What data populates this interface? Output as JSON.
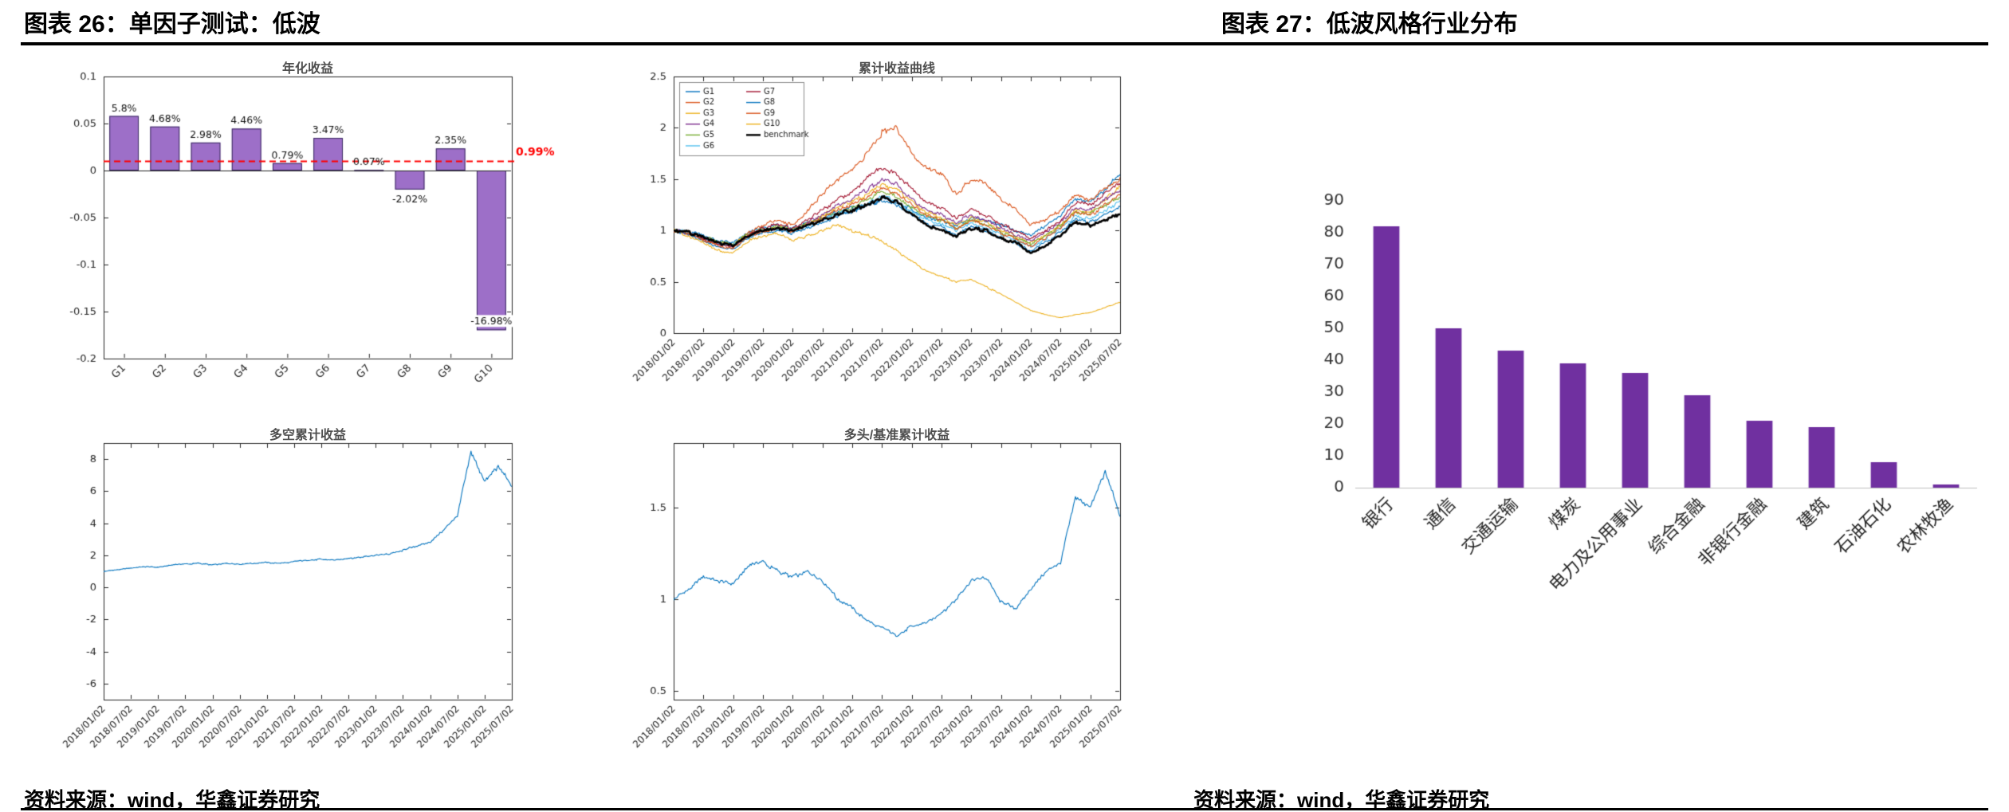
{
  "header": {
    "left_title": "图表 26：单因子测试：低波",
    "right_title": "图表 27：低波风格行业分布"
  },
  "footer": {
    "left_source": "资料来源：wind，华鑫证券研究",
    "right_source": "资料来源：wind，华鑫证券研究"
  },
  "colors": {
    "bar_fill": "#9D6FC8",
    "bar_edge": "#3A2A60",
    "industry_bar": "#7030A0",
    "line_blue": "#0072BD",
    "ref_red": "#FF0000",
    "axis": "#262626"
  },
  "chart_data": [
    {
      "id": "annualized-return",
      "type": "bar",
      "title": "年化收益",
      "categories": [
        "G1",
        "G2",
        "G3",
        "G4",
        "G5",
        "G6",
        "G7",
        "G8",
        "G9",
        "G10"
      ],
      "values": [
        0.058,
        0.0468,
        0.0298,
        0.0446,
        0.0079,
        0.0347,
        0.0007,
        -0.0202,
        0.0235,
        -0.1698
      ],
      "value_labels": [
        "5.8%",
        "4.68%",
        "2.98%",
        "4.46%",
        "0.79%",
        "3.47%",
        "0.07%",
        "-2.02%",
        "2.35%",
        "-16.98%"
      ],
      "ref_line": {
        "value": 0.0099,
        "label": "0.99%",
        "style": "dashed",
        "color": "#FF0000"
      },
      "ylim": [
        -0.2,
        0.1
      ],
      "yticks": [
        0.1,
        0.05,
        0,
        -0.05,
        -0.1,
        -0.15,
        -0.2
      ],
      "grid": false
    },
    {
      "id": "cumulative-return-curves",
      "type": "line",
      "title": "累计收益曲线",
      "ylim": [
        0,
        2.5
      ],
      "yticks": [
        0,
        0.5,
        1,
        1.5,
        2,
        2.5
      ],
      "noise": 0.022,
      "grid": false,
      "xticks": [
        "2018/01/02",
        "2018/07/02",
        "2019/01/02",
        "2019/07/02",
        "2020/01/02",
        "2020/07/02",
        "2021/01/02",
        "2021/07/02",
        "2022/01/02",
        "2022/07/02",
        "2023/01/02",
        "2023/07/02",
        "2024/01/02",
        "2024/07/02",
        "2025/01/02",
        "2025/07/02"
      ],
      "legend": {
        "position": "top-left",
        "columns": [
          [
            "G1",
            "G2",
            "G3",
            "G4",
            "G5",
            "G6"
          ],
          [
            "G7",
            "G8",
            "G9",
            "G10",
            "benchmark"
          ]
        ]
      },
      "series": [
        {
          "name": "G1",
          "color": "#0072BD",
          "values": [
            1.0,
            0.99,
            0.95,
            0.9,
            0.88,
            0.98,
            1.02,
            1.05,
            1.02,
            1.08,
            1.12,
            1.18,
            1.22,
            1.25,
            1.3,
            1.28,
            1.2,
            1.12,
            1.1,
            1.05,
            1.12,
            1.1,
            1.05,
            1.0,
            0.95,
            1.05,
            1.15,
            1.3,
            1.28,
            1.4,
            1.55
          ]
        },
        {
          "name": "G2",
          "color": "#D95319",
          "values": [
            1.0,
            0.97,
            0.92,
            0.87,
            0.85,
            0.97,
            1.05,
            1.1,
            1.05,
            1.2,
            1.35,
            1.5,
            1.6,
            1.75,
            1.95,
            2.0,
            1.75,
            1.6,
            1.55,
            1.35,
            1.5,
            1.45,
            1.3,
            1.2,
            1.05,
            1.1,
            1.2,
            1.35,
            1.3,
            1.4,
            1.5
          ]
        },
        {
          "name": "G3",
          "color": "#EDB120",
          "values": [
            1.0,
            0.98,
            0.93,
            0.88,
            0.86,
            0.96,
            1.0,
            1.04,
            1.0,
            1.08,
            1.15,
            1.22,
            1.28,
            1.35,
            1.45,
            1.4,
            1.28,
            1.18,
            1.12,
            1.05,
            1.12,
            1.08,
            1.0,
            0.95,
            0.88,
            0.95,
            1.05,
            1.2,
            1.18,
            1.3,
            1.42
          ]
        },
        {
          "name": "G4",
          "color": "#7E2F8E",
          "values": [
            1.0,
            0.97,
            0.92,
            0.86,
            0.84,
            0.95,
            1.0,
            1.03,
            1.0,
            1.07,
            1.15,
            1.25,
            1.3,
            1.4,
            1.5,
            1.45,
            1.3,
            1.2,
            1.15,
            1.08,
            1.15,
            1.1,
            1.02,
            0.96,
            0.9,
            0.98,
            1.08,
            1.22,
            1.2,
            1.3,
            1.38
          ]
        },
        {
          "name": "G5",
          "color": "#77AC30",
          "values": [
            1.0,
            0.98,
            0.94,
            0.89,
            0.87,
            0.97,
            1.01,
            1.04,
            1.01,
            1.06,
            1.12,
            1.18,
            1.22,
            1.3,
            1.38,
            1.33,
            1.22,
            1.14,
            1.1,
            1.02,
            1.1,
            1.06,
            0.98,
            0.93,
            0.87,
            0.95,
            1.05,
            1.18,
            1.16,
            1.25,
            1.32
          ]
        },
        {
          "name": "G6",
          "color": "#4DBEEE",
          "values": [
            1.0,
            0.98,
            0.93,
            0.87,
            0.85,
            0.95,
            1.0,
            1.02,
            0.99,
            1.05,
            1.1,
            1.16,
            1.2,
            1.26,
            1.33,
            1.28,
            1.18,
            1.1,
            1.06,
            1.0,
            1.07,
            1.03,
            0.96,
            0.9,
            0.84,
            0.92,
            1.02,
            1.14,
            1.12,
            1.2,
            1.27
          ]
        },
        {
          "name": "G7",
          "color": "#A2142F",
          "values": [
            1.0,
            0.97,
            0.92,
            0.86,
            0.84,
            0.96,
            1.02,
            1.06,
            1.02,
            1.1,
            1.2,
            1.3,
            1.38,
            1.5,
            1.62,
            1.55,
            1.4,
            1.28,
            1.22,
            1.12,
            1.2,
            1.15,
            1.06,
            1.0,
            0.92,
            1.0,
            1.1,
            1.28,
            1.25,
            1.35,
            1.47
          ]
        },
        {
          "name": "G8",
          "color": "#0072BD",
          "values": [
            1.0,
            0.96,
            0.9,
            0.84,
            0.82,
            0.93,
            0.98,
            1.0,
            0.97,
            1.03,
            1.08,
            1.14,
            1.18,
            1.24,
            1.3,
            1.25,
            1.15,
            1.07,
            1.03,
            0.96,
            1.04,
            1.0,
            0.92,
            0.87,
            0.8,
            0.88,
            0.98,
            1.1,
            1.08,
            1.15,
            1.22
          ]
        },
        {
          "name": "G9",
          "color": "#D95319",
          "values": [
            1.0,
            0.97,
            0.91,
            0.85,
            0.83,
            0.94,
            0.99,
            1.02,
            0.99,
            1.05,
            1.12,
            1.2,
            1.26,
            1.33,
            1.42,
            1.36,
            1.25,
            1.15,
            1.1,
            1.02,
            1.1,
            1.05,
            0.97,
            0.92,
            0.85,
            0.93,
            1.03,
            1.18,
            1.15,
            1.25,
            1.35
          ]
        },
        {
          "name": "G10",
          "color": "#EDB120",
          "values": [
            1.0,
            0.95,
            0.88,
            0.8,
            0.78,
            0.9,
            0.95,
            0.97,
            0.9,
            0.95,
            1.0,
            1.05,
            1.0,
            0.95,
            0.9,
            0.8,
            0.7,
            0.6,
            0.55,
            0.5,
            0.52,
            0.45,
            0.38,
            0.3,
            0.22,
            0.18,
            0.15,
            0.18,
            0.2,
            0.25,
            0.3
          ]
        },
        {
          "name": "benchmark",
          "color": "#000000",
          "width": 2.6,
          "values": [
            1.0,
            0.98,
            0.93,
            0.88,
            0.85,
            0.95,
            1.0,
            1.02,
            1.0,
            1.05,
            1.1,
            1.15,
            1.2,
            1.25,
            1.33,
            1.28,
            1.15,
            1.05,
            1.0,
            0.95,
            1.02,
            1.0,
            0.92,
            0.88,
            0.78,
            0.85,
            0.95,
            1.08,
            1.05,
            1.1,
            1.16
          ]
        }
      ]
    },
    {
      "id": "long-short-cumulative-return",
      "type": "line",
      "title": "多空累计收益",
      "ylim": [
        -7,
        9
      ],
      "yticks": [
        8,
        6,
        4,
        2,
        0,
        -2,
        -4,
        -6
      ],
      "noise": 0.03,
      "grid": false,
      "xticks": [
        "2018/01/02",
        "2018/07/02",
        "2019/01/02",
        "2019/07/02",
        "2020/01/02",
        "2020/07/02",
        "2021/01/02",
        "2021/07/02",
        "2022/01/02",
        "2022/07/02",
        "2023/01/02",
        "2023/07/02",
        "2024/01/02",
        "2024/07/02",
        "2025/01/02",
        "2025/07/02"
      ],
      "series": [
        {
          "name": "多空",
          "color": "#0072BD",
          "values": [
            1.0,
            1.1,
            1.2,
            1.3,
            1.25,
            1.4,
            1.45,
            1.5,
            1.4,
            1.5,
            1.45,
            1.5,
            1.55,
            1.5,
            1.6,
            1.7,
            1.75,
            1.7,
            1.8,
            1.9,
            2.0,
            2.1,
            2.3,
            2.6,
            2.8,
            3.6,
            4.5,
            8.4,
            6.6,
            7.6,
            6.3
          ]
        }
      ]
    },
    {
      "id": "long-over-benchmark-cumulative-return",
      "type": "line",
      "title": "多头/基准累计收益",
      "ylim": [
        0.45,
        1.85
      ],
      "yticks": [
        0.5,
        1,
        1.5
      ],
      "noise": 0.013,
      "grid": false,
      "xticks": [
        "2018/01/02",
        "2018/07/02",
        "2019/01/02",
        "2019/07/02",
        "2020/01/02",
        "2020/07/02",
        "2021/01/02",
        "2021/07/02",
        "2022/01/02",
        "2022/07/02",
        "2023/01/02",
        "2023/07/02",
        "2024/01/02",
        "2024/07/02",
        "2025/01/02",
        "2025/07/02"
      ],
      "series": [
        {
          "name": "多头/基准",
          "color": "#0072BD",
          "values": [
            1.0,
            1.05,
            1.12,
            1.1,
            1.08,
            1.18,
            1.2,
            1.15,
            1.12,
            1.15,
            1.1,
            1.0,
            0.95,
            0.88,
            0.84,
            0.8,
            0.85,
            0.87,
            0.92,
            1.0,
            1.1,
            1.12,
            0.98,
            0.95,
            1.05,
            1.15,
            1.2,
            1.55,
            1.5,
            1.7,
            1.45
          ]
        }
      ]
    },
    {
      "id": "industry-distribution",
      "type": "bar",
      "title": "",
      "categories": [
        "银行",
        "通信",
        "交通运输",
        "煤炭",
        "电力及公用事业",
        "综合金融",
        "非银行金融",
        "建筑",
        "石油石化",
        "农林牧渔"
      ],
      "values": [
        82,
        50,
        43,
        39,
        36,
        29,
        21,
        19,
        8,
        1
      ],
      "ylim": [
        0,
        90
      ],
      "yticks": [
        90,
        80,
        70,
        60,
        50,
        40,
        30,
        20,
        10,
        0
      ],
      "grid": false
    }
  ]
}
